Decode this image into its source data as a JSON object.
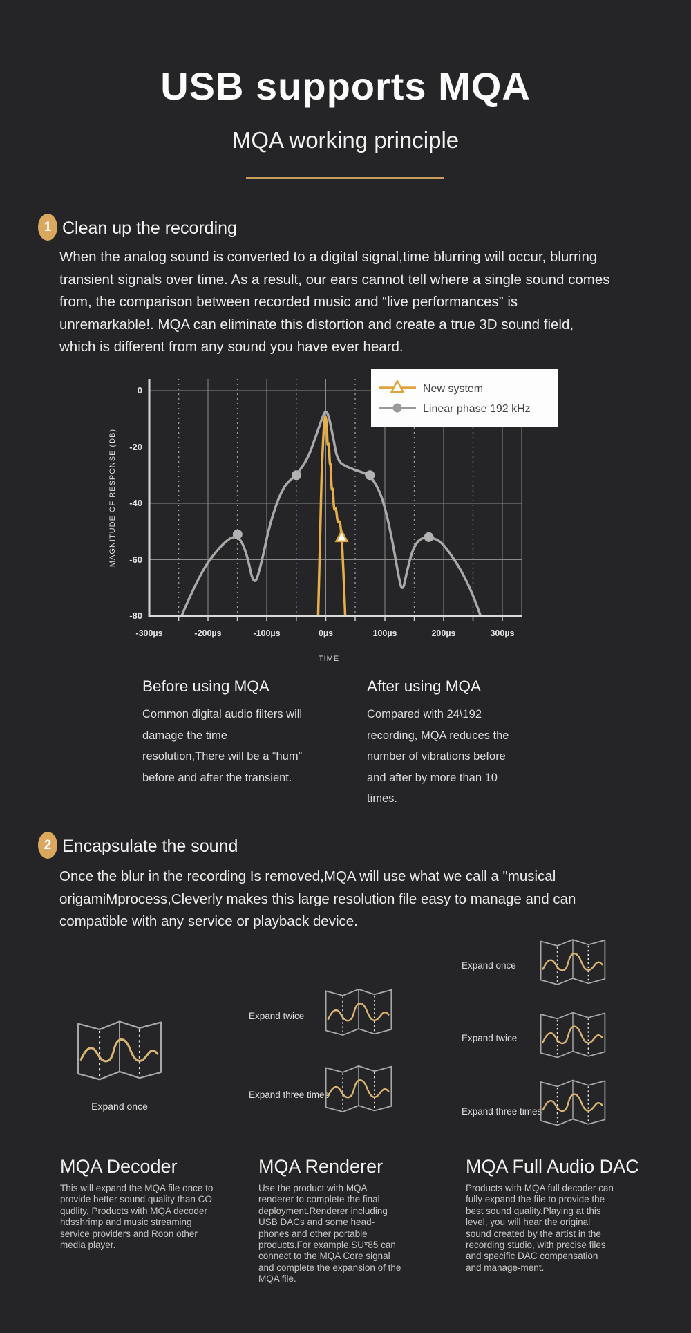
{
  "header": {
    "title": "USB supports MQA",
    "subtitle": "MQA working principle"
  },
  "sections": [
    {
      "number": "1",
      "heading": "Clean up the recording",
      "body": "When the analog sound is converted to a digital signal,time blurring will occur, blurring transient signals over time. As a result, our ears cannot tell where a single sound comes from, the comparison between recorded music and “live performances” is unremarkable!. MQA can eliminate this distortion and create a true 3D sound field, which is different from any sound you have ever heard."
    },
    {
      "number": "2",
      "heading": "Encapsulate the sound",
      "body": "Once the blur in the recording Is removed,MQA will use what we call a \"musical origamiMprocess,Cleverly makes this large resolution file easy to manage and can compatible with any service or playback device."
    }
  ],
  "chart": {
    "ylabel": "MAGNITUDE OF RESPONSE (DB)",
    "xlabel": "TIME",
    "yticks": [
      "0",
      "-20",
      "-40",
      "-60",
      "-80"
    ],
    "xticks": [
      "-300µs",
      "-200µs",
      "-100µs",
      "0µs",
      "100µs",
      "200µs",
      "300µs"
    ],
    "legend": [
      "New system",
      "Linear phase 192 kHz"
    ]
  },
  "chart_data": {
    "type": "line",
    "xlabel": "TIME",
    "ylabel": "MAGNITUDE OF RESPONSE (DB)",
    "x_unit": "µs",
    "xlim": [
      -300,
      300
    ],
    "ylim": [
      -80,
      0
    ],
    "xticks": [
      -300,
      -200,
      -100,
      0,
      100,
      200,
      300
    ],
    "yticks": [
      0,
      -20,
      -40,
      -60,
      -80
    ],
    "grid": true,
    "legend_position": "top-right",
    "series": [
      {
        "name": "New system",
        "color": "#e6af4b",
        "marker": "triangle",
        "points": [
          [
            -13,
            -80
          ],
          [
            -10,
            -55
          ],
          [
            -7,
            -28
          ],
          [
            -3,
            -11
          ],
          [
            0,
            -8.5
          ],
          [
            2,
            -14
          ],
          [
            3,
            -20
          ],
          [
            5,
            -18
          ],
          [
            7,
            -27
          ],
          [
            8,
            -25
          ],
          [
            10,
            -36
          ],
          [
            12,
            -34
          ],
          [
            14,
            -43
          ],
          [
            17,
            -41
          ],
          [
            20,
            -47
          ],
          [
            24,
            -46
          ],
          [
            27,
            -52
          ],
          [
            29,
            -60
          ],
          [
            31,
            -70
          ],
          [
            33,
            -80
          ]
        ],
        "marker_at": [
          [
            27,
            -52
          ]
        ]
      },
      {
        "name": "Linear phase 192 kHz",
        "color": "#a9a9a9",
        "marker": "circle",
        "points": [
          [
            -245,
            -80
          ],
          [
            -215,
            -65
          ],
          [
            -175,
            -54
          ],
          [
            -150,
            -51
          ],
          [
            -135,
            -57
          ],
          [
            -122,
            -70
          ],
          [
            -110,
            -62
          ],
          [
            -95,
            -47
          ],
          [
            -73,
            -34
          ],
          [
            -50,
            -30
          ],
          [
            -30,
            -24
          ],
          [
            -15,
            -15
          ],
          [
            -5,
            -9
          ],
          [
            0,
            -7
          ],
          [
            5,
            -9
          ],
          [
            12,
            -16
          ],
          [
            20,
            -25
          ],
          [
            35,
            -27
          ],
          [
            55,
            -28.5
          ],
          [
            75,
            -30
          ],
          [
            90,
            -35
          ],
          [
            100,
            -41
          ],
          [
            112,
            -52
          ],
          [
            122,
            -64
          ],
          [
            130,
            -72
          ],
          [
            138,
            -64
          ],
          [
            148,
            -56
          ],
          [
            160,
            -52.5
          ],
          [
            175,
            -52
          ],
          [
            192,
            -53
          ],
          [
            205,
            -56
          ],
          [
            225,
            -62
          ],
          [
            245,
            -70
          ],
          [
            258,
            -77
          ],
          [
            263,
            -80
          ]
        ],
        "marker_at": [
          [
            -150,
            -51
          ],
          [
            -50,
            -30
          ],
          [
            75,
            -30
          ],
          [
            175,
            -52
          ]
        ]
      }
    ]
  },
  "comparison": {
    "before_heading": "Before using MQA",
    "before_body": "Common digital audio filters will damage the time resolution,There will be a “hum” before and after the transient.",
    "after_heading": "After using MQA",
    "after_body": "Compared with 24\\192 recording, MQA reduces the number of vibrations before and after by more than 10 times."
  },
  "origami": {
    "left_label": "Expand once",
    "middle_labels": [
      "Expand twice",
      "Expand three times"
    ],
    "right_labels": [
      "Expand once",
      "Expand twice",
      "Expand three times"
    ]
  },
  "cards": [
    {
      "heading": "MQA Decoder",
      "body": "This will expand the MQA file once to provide better sound quality than CO qudlity, Products with MQA decoder hdsshrimp and music streaming service providers and Roon other media player."
    },
    {
      "heading": "MQA Renderer",
      "body": "Use the product with MQA renderer to complete the final deployment.Renderer including USB DACs and some head-phones and other portable products.For example,SU*85 can connect to the MQA Core signal and complete the expansion of the MQA file."
    },
    {
      "heading": "MQA Full Audio DAC",
      "body": "Products with MQA full decoder can fully expand the file to provide the best sound quality.Playing at this level, you will hear the original sound created by the artist in the recording studio, with precise files and specific DAC compensation and manage-ment."
    }
  ],
  "colors": {
    "background": "#252527",
    "accent_gold": "#c79e5e",
    "badge_gold": "#d9a75d",
    "curve_gold": "#e6af4b",
    "curve_gray": "#a9a9a9",
    "legend_background": "#ffffff"
  }
}
